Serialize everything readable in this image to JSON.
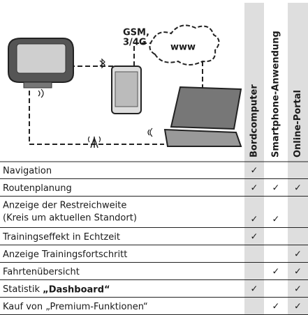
{
  "diagram": {
    "network_label": [
      "GSM,",
      "3/4G"
    ],
    "cloud_label": "www"
  },
  "columns": [
    "Bordcomputer",
    "Smartphone-Anwendung",
    "Online-Portal"
  ],
  "rows": [
    {
      "label": [
        "Navigation"
      ],
      "checks": [
        "✓",
        null,
        null
      ]
    },
    {
      "label": [
        "Routenplanung"
      ],
      "checks": [
        "✓",
        "✓",
        "✓"
      ]
    },
    {
      "label": [
        "Anzeige der Restreichweite",
        "(Kreis um aktuellen Standort)"
      ],
      "checks": [
        "✓",
        "✓",
        null
      ]
    },
    {
      "label": [
        "Trainingseffekt in Echtzeit"
      ],
      "checks": [
        "✓",
        null,
        null
      ]
    },
    {
      "label": [
        "Anzeige Trainingsfortschritt"
      ],
      "checks": [
        null,
        null,
        "✓"
      ]
    },
    {
      "label": [
        "Fahrtenübersicht"
      ],
      "checks": [
        null,
        "✓",
        "✓"
      ]
    },
    {
      "label": [
        "Statistik "
      ],
      "label_bold": "„Dashboard“",
      "checks": [
        "✓",
        null,
        "✓"
      ]
    },
    {
      "label": [
        "Kauf von „Premium-Funktionen“"
      ],
      "checks": [
        null,
        "✓",
        "✓"
      ]
    }
  ]
}
